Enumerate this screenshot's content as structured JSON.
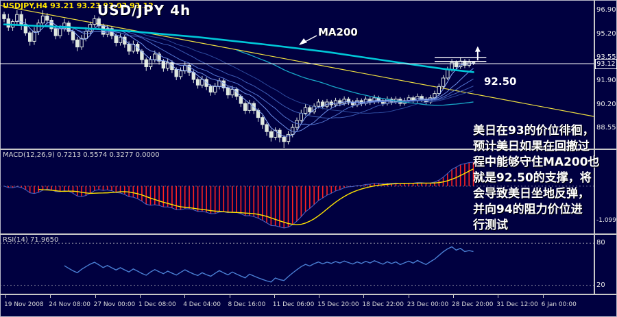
{
  "window": {
    "symbol_line": "USDJPY,H4  93.21 93.23 93.03 93.12",
    "title": "USD/JPY 4h"
  },
  "main_chart": {
    "ma200_label": "MA200",
    "support_label": "92.50",
    "current_price": "93.12",
    "price_axis": [
      "96.90",
      "95.20",
      "93.55",
      "91.90",
      "90.20",
      "88.55"
    ],
    "annotation": "美日在93的价位徘徊，\n预计美日如果在回撤过\n程中能够守住MA200也\n就是92.50的支撑，将\n会导致美日坐地反弹，\n并向94的阻力价位进\n行测试"
  },
  "macd_panel": {
    "label": "MACD(12,26,9) 0.7213 0.5574 0.3277 0.0000",
    "axis_label": "-1.0999"
  },
  "rsi_panel": {
    "label": "RSI(14) 71.9650",
    "levels": [
      "80",
      "20"
    ]
  },
  "time_axis": {
    "labels": [
      "19 Nov 2008",
      "24 Nov 08:00",
      "27 Nov 00:00",
      "1 Dec 08:00",
      "4 Dec 04:00",
      "8 Dec 16:00",
      "11 Dec 06:00",
      "15 Dec 20:00",
      "18 Dec 22:00",
      "23 Dec 00:00",
      "28 Dec 20:00",
      "31 Dec 12:00",
      "6 Jan 00:00"
    ]
  },
  "colors": {
    "background": "#000040",
    "panel_border": "#c8c8c8",
    "candle": "#dfe8df",
    "ma200": "#00c8d8",
    "ma_cyan": "#18a8c8",
    "ribbon": [
      "#8fb0ff",
      "#6d8fe8",
      "#5273cf",
      "#3d5cb5",
      "#2c499c"
    ],
    "trendline": "#f0e040",
    "bid_line": "#ffffff",
    "macd_hist": "#ff2222",
    "macd_signal": "#ffe400",
    "macd_line": "#4a66c8",
    "rsi": "#4a7fd4",
    "level_dotted": "#9898a8",
    "axis_text": "#e8e8e8"
  },
  "chart_data": {
    "type": "candlestick",
    "symbol": "USDJPY",
    "timeframe": "H4",
    "title": "USD/JPY 4h",
    "last_ohlc": {
      "open": 93.21,
      "high": 93.23,
      "low": 93.03,
      "close": 93.12
    },
    "y_range_main": [
      87.1,
      97.63
    ],
    "ohlc": [
      [
        96.6,
        96.8,
        96.05,
        96.3
      ],
      [
        96.3,
        96.65,
        95.45,
        95.7
      ],
      [
        95.7,
        96.25,
        95.45,
        96.1
      ],
      [
        96.1,
        96.9,
        95.85,
        96.6
      ],
      [
        96.6,
        96.85,
        95.5,
        95.9
      ],
      [
        95.9,
        96.3,
        95.1,
        95.3
      ],
      [
        95.3,
        95.45,
        94.4,
        94.7
      ],
      [
        94.7,
        95.7,
        94.45,
        95.4
      ],
      [
        95.4,
        96.25,
        95.15,
        96.0
      ],
      [
        96.0,
        96.9,
        95.8,
        96.5
      ],
      [
        96.5,
        96.7,
        95.95,
        96.2
      ],
      [
        96.2,
        96.4,
        95.35,
        95.6
      ],
      [
        95.6,
        95.8,
        94.85,
        95.1
      ],
      [
        95.1,
        95.85,
        94.9,
        95.6
      ],
      [
        95.6,
        96.3,
        95.4,
        96.0
      ],
      [
        96.0,
        96.15,
        95.15,
        95.4
      ],
      [
        95.4,
        95.6,
        94.55,
        94.8
      ],
      [
        94.8,
        95.0,
        94.0,
        94.3
      ],
      [
        94.3,
        95.15,
        94.1,
        94.9
      ],
      [
        94.9,
        95.7,
        94.7,
        95.4
      ],
      [
        95.4,
        96.1,
        95.2,
        95.9
      ],
      [
        95.9,
        96.55,
        95.7,
        96.3
      ],
      [
        96.3,
        96.45,
        95.55,
        95.8
      ],
      [
        95.8,
        95.95,
        95.0,
        95.2
      ],
      [
        95.2,
        95.85,
        95.0,
        95.6
      ],
      [
        95.6,
        95.75,
        94.85,
        95.1
      ],
      [
        95.1,
        95.25,
        94.35,
        94.6
      ],
      [
        94.6,
        95.25,
        94.4,
        95.0
      ],
      [
        95.0,
        95.15,
        94.25,
        94.5
      ],
      [
        94.5,
        94.7,
        93.75,
        94.0
      ],
      [
        94.0,
        94.75,
        93.85,
        94.5
      ],
      [
        94.5,
        94.65,
        93.8,
        94.0
      ],
      [
        94.0,
        94.15,
        93.15,
        93.4
      ],
      [
        93.4,
        93.55,
        92.6,
        92.9
      ],
      [
        92.9,
        93.65,
        92.7,
        93.4
      ],
      [
        93.4,
        94.05,
        93.2,
        93.8
      ],
      [
        93.8,
        93.95,
        93.05,
        93.3
      ],
      [
        93.3,
        93.45,
        92.55,
        92.8
      ],
      [
        92.8,
        93.45,
        92.6,
        93.2
      ],
      [
        93.2,
        93.35,
        92.45,
        92.7
      ],
      [
        92.7,
        92.85,
        91.95,
        92.2
      ],
      [
        92.2,
        92.85,
        92.0,
        92.6
      ],
      [
        92.6,
        93.25,
        92.4,
        93.0
      ],
      [
        93.0,
        93.15,
        92.25,
        92.5
      ],
      [
        92.5,
        92.65,
        91.75,
        92.0
      ],
      [
        92.0,
        92.15,
        91.35,
        91.6
      ],
      [
        91.6,
        92.25,
        91.4,
        92.0
      ],
      [
        92.0,
        92.15,
        91.25,
        91.5
      ],
      [
        91.5,
        91.65,
        90.85,
        91.1
      ],
      [
        91.1,
        91.75,
        90.9,
        91.5
      ],
      [
        91.5,
        92.1,
        91.3,
        91.9
      ],
      [
        91.9,
        92.05,
        91.15,
        91.4
      ],
      [
        91.4,
        91.55,
        90.65,
        90.9
      ],
      [
        90.9,
        91.55,
        90.7,
        91.3
      ],
      [
        91.3,
        91.45,
        90.55,
        90.8
      ],
      [
        90.8,
        90.95,
        90.05,
        90.3
      ],
      [
        90.3,
        90.45,
        89.55,
        89.8
      ],
      [
        89.8,
        90.55,
        89.6,
        90.3
      ],
      [
        90.3,
        90.45,
        89.55,
        89.8
      ],
      [
        89.8,
        89.95,
        89.0,
        89.3
      ],
      [
        89.3,
        89.45,
        88.5,
        88.8
      ],
      [
        88.8,
        88.95,
        88.0,
        88.3
      ],
      [
        88.3,
        88.45,
        87.6,
        87.9
      ],
      [
        87.9,
        88.6,
        87.7,
        88.4
      ],
      [
        88.4,
        88.55,
        87.55,
        87.9
      ],
      [
        87.9,
        88.05,
        87.15,
        87.6
      ],
      [
        87.6,
        88.35,
        87.4,
        88.1
      ],
      [
        88.1,
        88.85,
        87.9,
        88.6
      ],
      [
        88.6,
        89.3,
        88.4,
        89.1
      ],
      [
        89.1,
        89.85,
        88.95,
        89.6
      ],
      [
        89.6,
        90.25,
        89.45,
        90.0
      ],
      [
        90.0,
        90.15,
        89.5,
        89.7
      ],
      [
        89.7,
        90.3,
        89.55,
        90.1
      ],
      [
        90.1,
        90.6,
        89.95,
        90.4
      ],
      [
        90.4,
        90.55,
        89.9,
        90.1
      ],
      [
        90.1,
        90.6,
        89.95,
        90.4
      ],
      [
        90.4,
        90.55,
        90.0,
        90.2
      ],
      [
        90.2,
        90.7,
        90.05,
        90.5
      ],
      [
        90.5,
        90.65,
        90.1,
        90.3
      ],
      [
        90.3,
        90.8,
        90.15,
        90.6
      ],
      [
        90.6,
        90.75,
        90.2,
        90.4
      ],
      [
        90.4,
        90.55,
        90.0,
        90.2
      ],
      [
        90.2,
        90.7,
        90.05,
        90.5
      ],
      [
        90.5,
        90.65,
        90.1,
        90.3
      ],
      [
        90.3,
        90.8,
        90.15,
        90.6
      ],
      [
        90.6,
        90.75,
        90.2,
        90.4
      ],
      [
        90.4,
        90.9,
        90.25,
        90.7
      ],
      [
        90.7,
        90.85,
        90.3,
        90.5
      ],
      [
        90.5,
        90.65,
        90.1,
        90.3
      ],
      [
        90.3,
        90.8,
        90.15,
        90.6
      ],
      [
        90.6,
        90.75,
        90.2,
        90.4
      ],
      [
        90.4,
        90.8,
        90.25,
        90.6
      ],
      [
        90.6,
        90.75,
        90.1,
        90.3
      ],
      [
        90.3,
        90.7,
        90.15,
        90.5
      ],
      [
        90.5,
        90.9,
        90.35,
        90.7
      ],
      [
        90.7,
        90.85,
        90.3,
        90.5
      ],
      [
        90.5,
        91.0,
        90.35,
        90.8
      ],
      [
        90.8,
        90.95,
        90.4,
        90.6
      ],
      [
        90.6,
        90.75,
        90.2,
        90.4
      ],
      [
        90.4,
        90.9,
        90.25,
        90.7
      ],
      [
        90.7,
        91.2,
        90.55,
        91.0
      ],
      [
        91.0,
        91.7,
        90.85,
        91.5
      ],
      [
        91.5,
        92.3,
        91.35,
        92.1
      ],
      [
        92.1,
        92.9,
        91.95,
        92.7
      ],
      [
        92.7,
        93.45,
        92.55,
        93.2
      ],
      [
        93.2,
        93.35,
        92.7,
        92.9
      ],
      [
        92.9,
        93.55,
        92.75,
        93.3
      ],
      [
        93.3,
        93.45,
        92.8,
        93.0
      ],
      [
        93.0,
        93.45,
        92.85,
        93.21
      ],
      [
        93.21,
        93.23,
        93.03,
        93.12
      ]
    ],
    "indicators": {
      "macd": {
        "fast": 12,
        "slow": 26,
        "signal": 9
      },
      "rsi": {
        "period": 14
      },
      "ma_ribbon": [
        4,
        9,
        14,
        21,
        30
      ],
      "ma_cyan": 55,
      "ma200_anchors": [
        [
          0,
          95.9
        ],
        [
          15,
          95.7
        ],
        [
          30,
          95.4
        ],
        [
          45,
          95.0
        ],
        [
          60,
          94.5
        ],
        [
          75,
          93.95
        ],
        [
          85,
          93.5
        ],
        [
          95,
          93.05
        ],
        [
          102,
          92.75
        ],
        [
          109,
          92.52
        ]
      ]
    },
    "overlays": {
      "trendline": {
        "from": [
          0,
          97.24
        ],
        "to": [
          1,
          89.38
        ]
      },
      "bid_line": 93.12,
      "breakout_lines": {
        "from_idx": 100,
        "to_idx": 112,
        "prices": [
          93.55,
          93.28
        ]
      },
      "arrow": {
        "idx": 110,
        "price_from": 93.35,
        "price_to": 94.35
      },
      "macd_axis_value": -1.0999
    },
    "rsi_levels": [
      80,
      20
    ]
  }
}
